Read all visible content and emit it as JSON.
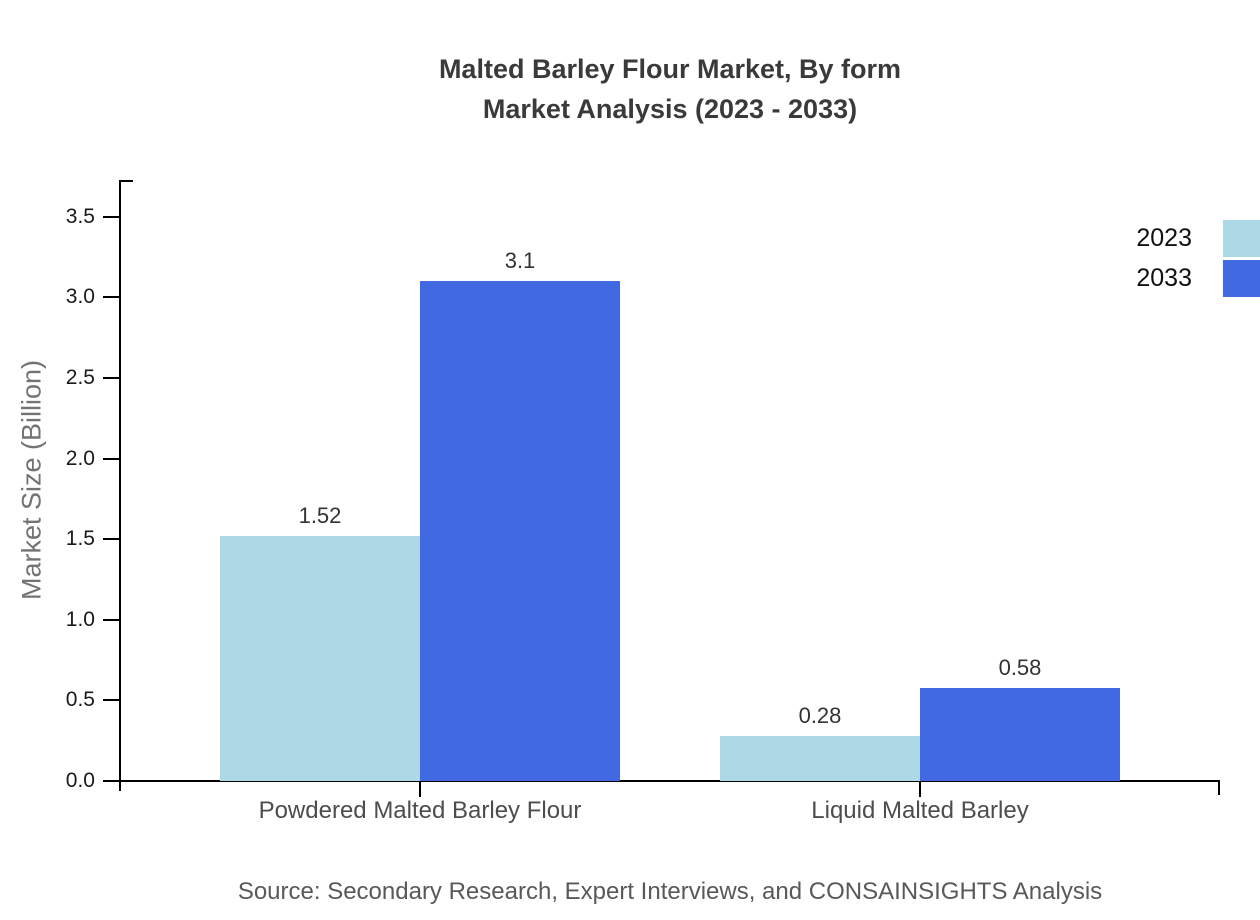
{
  "title": {
    "line1": "Malted Barley Flour Market, By form",
    "line2": "Market Analysis (2023 - 2033)"
  },
  "source": "Source: Secondary Research, Expert Interviews, and CONSAINSIGHTS Analysis",
  "chart_data": {
    "type": "bar",
    "title": "Malted Barley Flour Market, By form Market Analysis (2023 - 2033)",
    "categories": [
      "Powdered Malted Barley Flour",
      "Liquid Malted Barley"
    ],
    "series": [
      {
        "name": "2023",
        "color": "#ADD8E6",
        "values": [
          1.52,
          0.28
        ]
      },
      {
        "name": "2033",
        "color": "#4169E1",
        "values": [
          3.1,
          0.58
        ]
      }
    ],
    "value_labels": [
      [
        "1.52",
        "0.28"
      ],
      [
        "3.1",
        "0.58"
      ]
    ],
    "xlabel": "",
    "ylabel": "Market Size (Billion)",
    "ylim": [
      0,
      3.7
    ],
    "yticks": [
      0.0,
      0.5,
      1.0,
      1.5,
      2.0,
      2.5,
      3.0,
      3.5
    ],
    "grid": false,
    "legend_position": "right-outside",
    "colors": {
      "axis": "#000000",
      "tick_label": "#1a1a1a",
      "category_label": "#4d4d4d",
      "value_label": "#333333",
      "y_axis_label": "#737373",
      "source_text": "#595959",
      "title_text": "#3a3a3a"
    }
  }
}
